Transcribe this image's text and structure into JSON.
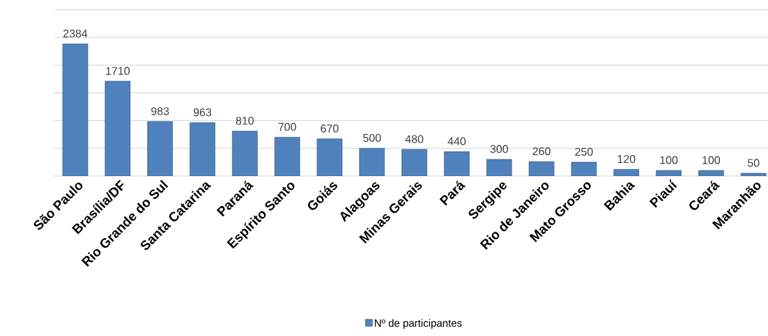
{
  "chart_data": {
    "type": "bar",
    "categories": [
      "São Paulo",
      "Brasília/DF",
      "Rio Grande do Sul",
      "Santa Catarina",
      "Paraná",
      "Espírito Santo",
      "Goiás",
      "Alagoas",
      "Minas Gerais",
      "Pará",
      "Sergipe",
      "Rio de Janeiro",
      "Mato Grosso",
      "Bahia",
      "Piauí",
      "Ceará",
      "Maranhão"
    ],
    "series": [
      {
        "name": "Nº de participantes",
        "color": "#4f81bd",
        "values": [
          2384,
          1710,
          983,
          963,
          810,
          700,
          670,
          500,
          480,
          440,
          300,
          260,
          250,
          120,
          100,
          100,
          50
        ]
      }
    ],
    "ylim": [
      0,
      3000
    ],
    "yticks": [
      {
        "value": 0,
        "label": null
      },
      {
        "value": 500,
        "label": null
      },
      {
        "value": 1000,
        "label": null
      },
      {
        "value": 1500,
        "label": null
      },
      {
        "value": 2000,
        "label": null
      },
      {
        "value": 2500,
        "label": null
      },
      {
        "value": 3000,
        "label": null
      }
    ],
    "tick_labels": "x",
    "grid": "y",
    "legend": "bottom",
    "data_labels": true
  }
}
